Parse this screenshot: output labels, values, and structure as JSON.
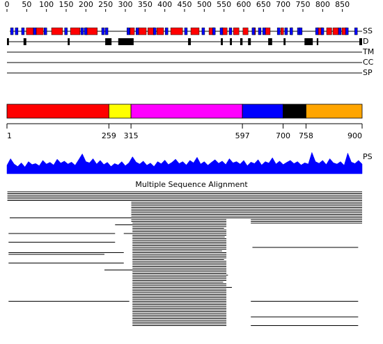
{
  "ruler": {
    "ticks": [
      0,
      50,
      100,
      150,
      200,
      250,
      300,
      350,
      400,
      450,
      500,
      550,
      600,
      650,
      700,
      750,
      800,
      850
    ],
    "length": 900
  },
  "tracks": {
    "ss": {
      "label": "SS",
      "helices": [
        [
          49,
          67
        ],
        [
          74,
          92
        ],
        [
          113,
          141
        ],
        [
          161,
          185
        ],
        [
          199,
          229
        ],
        [
          312,
          323
        ],
        [
          334,
          353
        ],
        [
          357,
          374
        ],
        [
          380,
          397
        ],
        [
          415,
          445
        ],
        [
          466,
          487
        ],
        [
          512,
          526
        ],
        [
          544,
          558
        ],
        [
          574,
          588
        ],
        [
          598,
          611
        ],
        [
          623,
          630
        ],
        [
          655,
          667
        ],
        [
          694,
          701
        ],
        [
          720,
          724
        ],
        [
          787,
          800
        ],
        [
          810,
          823
        ],
        [
          826,
          840
        ],
        [
          849,
          860
        ]
      ],
      "helix_color": "#ff0000",
      "strands": [
        [
          9,
          16
        ],
        [
          21,
          28
        ],
        [
          37,
          44
        ],
        [
          67,
          74
        ],
        [
          94,
          101
        ],
        [
          146,
          153
        ],
        [
          187,
          194
        ],
        [
          196,
          203
        ],
        [
          240,
          247
        ],
        [
          249,
          256
        ],
        [
          304,
          311
        ],
        [
          327,
          334
        ],
        [
          371,
          378
        ],
        [
          401,
          408
        ],
        [
          450,
          457
        ],
        [
          494,
          501
        ],
        [
          521,
          528
        ],
        [
          540,
          547
        ],
        [
          563,
          570
        ],
        [
          621,
          628
        ],
        [
          637,
          644
        ],
        [
          648,
          655
        ],
        [
          685,
          692
        ],
        [
          704,
          711
        ],
        [
          717,
          724
        ],
        [
          736,
          743
        ],
        [
          741,
          748
        ],
        [
          782,
          789
        ],
        [
          796,
          803
        ],
        [
          840,
          847
        ],
        [
          858,
          865
        ],
        [
          881,
          888
        ]
      ],
      "strand_color": "#0000ff"
    },
    "disorder": {
      "label": "D",
      "regions": [
        [
          0,
          5
        ],
        [
          42,
          49
        ],
        [
          154,
          159
        ],
        [
          249,
          265
        ],
        [
          282,
          321
        ],
        [
          459,
          466
        ],
        [
          542,
          547
        ],
        [
          565,
          570
        ],
        [
          591,
          597
        ],
        [
          611,
          618
        ],
        [
          662,
          672
        ],
        [
          701,
          706
        ],
        [
          754,
          775
        ],
        [
          785,
          789
        ],
        [
          893,
          900
        ]
      ]
    },
    "tm": {
      "label": "TM"
    },
    "cc": {
      "label": "CC"
    },
    "sp": {
      "label": "SP"
    }
  },
  "domains": {
    "boundaries": [
      1,
      259,
      315,
      597,
      700,
      758,
      900
    ],
    "colors": [
      "#ff0000",
      "#ffff00",
      "#ff00ff",
      "#0000ff",
      "#000000",
      "#ffa500"
    ]
  },
  "ps": {
    "label": "PS",
    "color": "#0000ff",
    "ylim": [
      0,
      1
    ],
    "values": [
      0.35,
      0.62,
      0.4,
      0.3,
      0.45,
      0.28,
      0.5,
      0.38,
      0.42,
      0.33,
      0.55,
      0.4,
      0.47,
      0.36,
      0.6,
      0.44,
      0.52,
      0.4,
      0.48,
      0.35,
      0.58,
      0.82,
      0.5,
      0.45,
      0.62,
      0.4,
      0.55,
      0.38,
      0.47,
      0.3,
      0.42,
      0.36,
      0.5,
      0.33,
      0.45,
      0.7,
      0.48,
      0.4,
      0.52,
      0.35,
      0.44,
      0.3,
      0.5,
      0.41,
      0.56,
      0.38,
      0.47,
      0.6,
      0.42,
      0.5,
      0.36,
      0.55,
      0.45,
      0.68,
      0.4,
      0.5,
      0.35,
      0.47,
      0.58,
      0.43,
      0.52,
      0.38,
      0.62,
      0.45,
      0.5,
      0.4,
      0.55,
      0.33,
      0.48,
      0.42,
      0.58,
      0.36,
      0.5,
      0.44,
      0.66,
      0.4,
      0.52,
      0.38,
      0.47,
      0.55,
      0.42,
      0.5,
      0.36,
      0.45,
      0.4,
      0.88,
      0.5,
      0.43,
      0.55,
      0.38,
      0.62,
      0.45,
      0.4,
      0.5,
      0.35,
      0.85,
      0.48,
      0.42,
      0.55,
      0.4
    ]
  },
  "msa": {
    "title": "Multiple Sequence Alignment",
    "rows": [
      [
        [
          1,
          900
        ]
      ],
      [
        [
          1,
          900
        ]
      ],
      [
        [
          1,
          900
        ]
      ],
      [
        [
          1,
          900
        ]
      ],
      [
        [
          1,
          900
        ]
      ],
      [
        [
          1,
          900
        ]
      ],
      [
        [
          315,
          900
        ]
      ],
      [
        [
          315,
          900
        ]
      ],
      [
        [
          315,
          900
        ]
      ],
      [
        [
          315,
          900
        ]
      ],
      [
        [
          315,
          900
        ]
      ],
      [
        [
          315,
          900
        ]
      ],
      [
        [
          315,
          900
        ]
      ],
      [
        [
          315,
          900
        ]
      ],
      [
        [
          315,
          900
        ]
      ],
      [
        [
          7,
          900
        ]
      ],
      [
        [
          315,
          556
        ],
        [
          618,
          900
        ]
      ],
      [
        [
          315,
          556
        ],
        [
          618,
          900
        ]
      ],
      [
        [
          318,
          556
        ],
        [
          618,
          900
        ]
      ],
      [
        [
          274,
          556
        ]
      ],
      [
        [
          318,
          556
        ]
      ],
      [
        [
          318,
          550
        ]
      ],
      [
        [
          318,
          556
        ]
      ],
      [
        [
          318,
          556
        ]
      ],
      [
        [
          4,
          274
        ],
        [
          296,
          556
        ]
      ],
      [
        [
          318,
          556
        ]
      ],
      [
        [
          318,
          552
        ]
      ],
      [
        [
          318,
          556
        ]
      ],
      [
        [
          318,
          556
        ]
      ],
      [
        [
          4,
          274
        ],
        [
          318,
          556
        ]
      ],
      [
        [
          318,
          556
        ]
      ],
      [
        [
          318,
          556
        ]
      ],
      [
        [
          318,
          556
        ],
        [
          622,
          890
        ]
      ],
      [
        [
          318,
          556
        ]
      ],
      [
        [
          318,
          545
        ]
      ],
      [
        [
          4,
          296
        ],
        [
          318,
          556
        ]
      ],
      [
        [
          4,
          247
        ],
        [
          318,
          556
        ]
      ],
      [
        [
          318,
          556
        ]
      ],
      [
        [
          318,
          556
        ]
      ],
      [
        [
          318,
          550
        ]
      ],
      [
        [
          318,
          556
        ]
      ],
      [
        [
          4,
          296
        ],
        [
          318,
          556
        ]
      ],
      [
        [
          318,
          556
        ]
      ],
      [
        [
          318,
          556
        ]
      ],
      [
        [
          318,
          556
        ]
      ],
      [
        [
          247,
          556
        ]
      ],
      [
        [
          318,
          556
        ]
      ],
      [
        [
          318,
          556
        ]
      ],
      [
        [
          318,
          560
        ]
      ],
      [
        [
          318,
          556
        ]
      ],
      [
        [
          318,
          556
        ]
      ],
      [
        [
          318,
          556
        ]
      ],
      [
        [
          318,
          548
        ]
      ],
      [
        [
          318,
          556
        ]
      ],
      [
        [
          318,
          556
        ]
      ],
      [
        [
          318,
          570
        ]
      ],
      [
        [
          318,
          556
        ]
      ],
      [
        [
          318,
          556
        ]
      ],
      [
        [
          318,
          556
        ]
      ],
      [
        [
          318,
          556
        ]
      ],
      [
        [
          318,
          556
        ]
      ],
      [
        [
          318,
          556
        ]
      ],
      [
        [
          318,
          556
        ]
      ],
      [
        [
          4,
          310
        ],
        [
          318,
          556
        ],
        [
          618,
          890
        ]
      ],
      [
        [
          318,
          556
        ]
      ],
      [
        [
          318,
          556
        ]
      ],
      [
        [
          318,
          556
        ]
      ],
      [
        [
          318,
          556
        ]
      ],
      [
        [
          318,
          556
        ]
      ],
      [
        [
          318,
          556
        ]
      ],
      [
        [
          318,
          556
        ]
      ],
      [
        [
          318,
          556
        ]
      ],
      [
        [
          318,
          556
        ],
        [
          618,
          890
        ]
      ],
      [
        [
          318,
          556
        ]
      ],
      [
        [
          318,
          556
        ]
      ],
      [
        [
          318,
          556
        ]
      ],
      [
        [
          318,
          556
        ]
      ],
      [
        [
          318,
          556
        ],
        [
          618,
          890
        ]
      ]
    ]
  }
}
